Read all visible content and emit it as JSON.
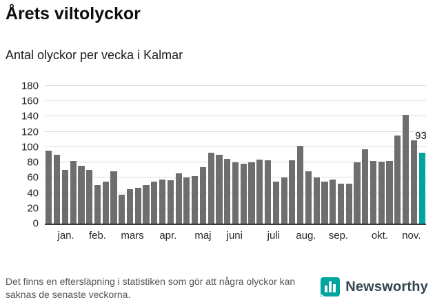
{
  "header": {
    "title": "Årets viltolyckor",
    "subtitle": "Antal olyckor per vecka i Kalmar"
  },
  "footer": {
    "note": "Det finns en eftersläpning i statistiken som gör att några olyckor kan saknas de senaste veckorna.",
    "brand": "Newsworthy"
  },
  "colors": {
    "bar": "#6e6e6e",
    "accent": "#00a5a0",
    "grid": "#d9d9d9",
    "axis": "#3a3a3a",
    "brand_text": "#33454e"
  },
  "chart_data": {
    "type": "bar",
    "title": "Årets viltolyckor",
    "subtitle": "Antal olyckor per vecka i Kalmar",
    "ylabel": "Antal olyckor per vecka",
    "xlabel": "",
    "ylim": [
      0,
      180
    ],
    "ytick_step": 20,
    "grid": true,
    "values": [
      95,
      90,
      70,
      82,
      76,
      70,
      50,
      55,
      68,
      38,
      45,
      47,
      50,
      55,
      58,
      57,
      66,
      60,
      62,
      74,
      93,
      90,
      85,
      80,
      78,
      80,
      84,
      83,
      55,
      60,
      83,
      102,
      68,
      60,
      55,
      58,
      52,
      52,
      80,
      97,
      82,
      81,
      82,
      115,
      142,
      109,
      93
    ],
    "highlight_index": 46,
    "highlight_value_label": "93",
    "month_ticks": [
      {
        "label": "jan.",
        "week": 2.6
      },
      {
        "label": "feb.",
        "week": 6.5
      },
      {
        "label": "mars",
        "week": 10.8
      },
      {
        "label": "apr.",
        "week": 15.2
      },
      {
        "label": "maj",
        "week": 19.5
      },
      {
        "label": "juni",
        "week": 23.4
      },
      {
        "label": "juli",
        "week": 28.2
      },
      {
        "label": "aug.",
        "week": 32.2
      },
      {
        "label": "sep.",
        "week": 36.2
      },
      {
        "label": "okt.",
        "week": 41.3
      },
      {
        "label": "nov.",
        "week": 45.2
      }
    ]
  }
}
